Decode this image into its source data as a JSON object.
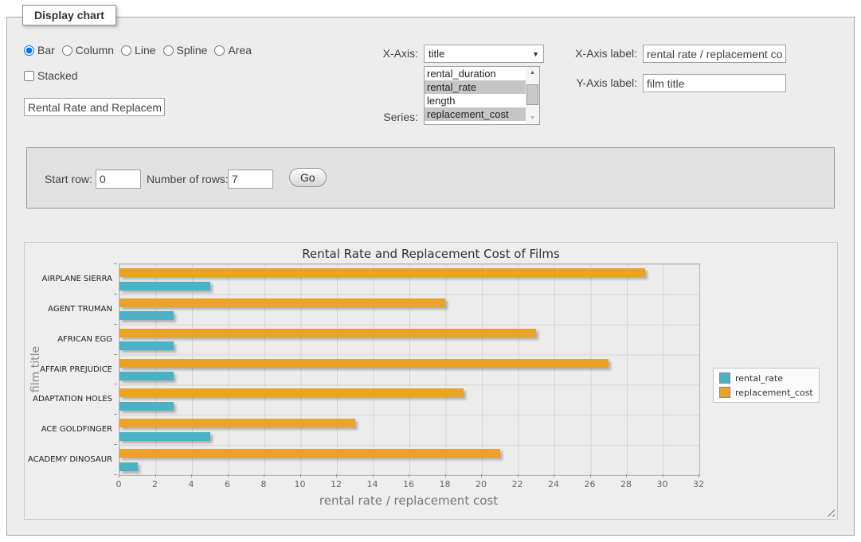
{
  "fieldset": {
    "legend": "Display chart"
  },
  "chart_type_options": [
    {
      "label": "Bar",
      "checked": true
    },
    {
      "label": "Column",
      "checked": false
    },
    {
      "label": "Line",
      "checked": false
    },
    {
      "label": "Spline",
      "checked": false
    },
    {
      "label": "Area",
      "checked": false
    }
  ],
  "stacked": {
    "label": "Stacked",
    "checked": false
  },
  "chart_title_input": {
    "value": "Rental Rate and Replacement Cost of Films"
  },
  "x_axis": {
    "label": "X-Axis:",
    "selected": "title"
  },
  "series_list": {
    "label": "Series:",
    "options": [
      {
        "label": "rental_duration",
        "selected": false
      },
      {
        "label": "rental_rate",
        "selected": true
      },
      {
        "label": "length",
        "selected": false
      },
      {
        "label": "replacement_cost",
        "selected": true
      }
    ]
  },
  "x_axis_label_field": {
    "label": "X-Axis label:",
    "value": "rental rate / replacement cost"
  },
  "y_axis_label_field": {
    "label": "Y-Axis label:",
    "value": "film title"
  },
  "rows_form": {
    "start_row_label": "Start row:",
    "start_row_value": "0",
    "num_rows_label": "Number of rows:",
    "num_rows_value": "7",
    "go_label": "Go"
  },
  "chart_data": {
    "type": "bar",
    "orientation": "horizontal",
    "title": "Rental Rate and Replacement Cost of Films",
    "xlabel": "rental rate / replacement cost",
    "ylabel": "film title",
    "categories": [
      "AIRPLANE SIERRA",
      "AGENT TRUMAN",
      "AFRICAN EGG",
      "AFFAIR PREJUDICE",
      "ADAPTATION HOLES",
      "ACE GOLDFINGER",
      "ACADEMY DINOSAUR"
    ],
    "series": [
      {
        "name": "rental_rate",
        "color": "#4bb2c5",
        "values": [
          4.99,
          2.99,
          2.99,
          2.99,
          2.99,
          4.99,
          0.99
        ]
      },
      {
        "name": "replacement_cost",
        "color": "#eaa228",
        "values": [
          28.99,
          17.99,
          22.99,
          26.99,
          18.99,
          12.99,
          20.99
        ]
      }
    ],
    "xlim": [
      0,
      32
    ],
    "x_ticks": [
      0,
      2,
      4,
      6,
      8,
      10,
      12,
      14,
      16,
      18,
      20,
      22,
      24,
      26,
      28,
      30,
      32
    ],
    "grid": true,
    "legend_position": "right"
  }
}
